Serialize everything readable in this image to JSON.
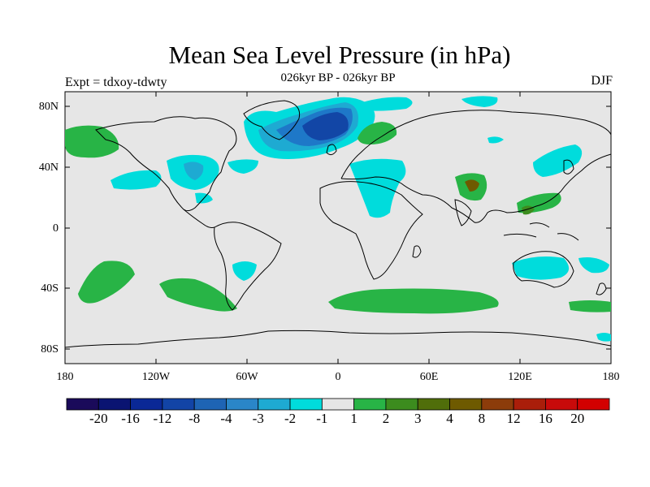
{
  "map": {
    "title": "Mean Sea Level Pressure (in hPa)",
    "subtitle": "026kyr BP - 026kyr BP",
    "left_label": "Expt = tdxoy-tdwty",
    "right_label": "DJF",
    "lat_ticks": [
      "80N",
      "40N",
      "0",
      "40S",
      "80S"
    ],
    "lon_ticks": [
      "180",
      "120W",
      "60W",
      "0",
      "60E",
      "120E",
      "180"
    ],
    "background_color": "#e6e6e6",
    "coast_color": "#000000"
  },
  "colorbar": {
    "colors": [
      "#1a0a5a",
      "#0a1472",
      "#0a2896",
      "#1244a6",
      "#1e64b4",
      "#2a86c8",
      "#1eaad2",
      "#00dcdc",
      "#e6e6e6",
      "#28b446",
      "#3c8c1e",
      "#506e0a",
      "#6e5a00",
      "#8c3c0a",
      "#aa1e0a",
      "#c80a0a",
      "#d20000"
    ],
    "labels": [
      "-20",
      "-16",
      "-12",
      "-8",
      "-4",
      "-3",
      "-2",
      "-1",
      "1",
      "2",
      "3",
      "4",
      "8",
      "12",
      "16",
      "20"
    ]
  },
  "legend_colors": {
    "cyan": "#00dcdc",
    "green": "#28b446",
    "light_blue": "#1eaad2",
    "mid_blue": "#1e78c8",
    "dark_blue": "#1246a6",
    "dark_green": "#3c8c1e",
    "olive": "#6e5a00"
  }
}
